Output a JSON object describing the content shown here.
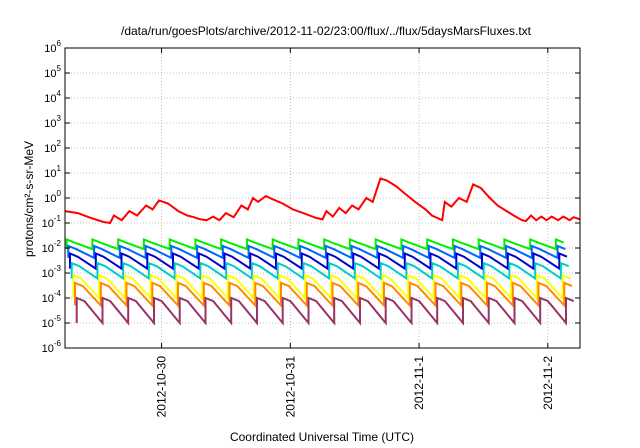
{
  "chart_data": {
    "type": "line",
    "title": "/data/run/goesPlots/archive/2012-11-02/23:00/flux/../flux/5daysMarsFluxes.txt",
    "xlabel": "Coordinated Universal Time (UTC)",
    "ylabel": "protons/cm²-s-sr-MeV",
    "yscale": "log",
    "ylim": [
      1e-06,
      1000000.0
    ],
    "xlim": [
      0,
      4.0
    ],
    "grid": true,
    "x_tick_labels": [
      {
        "x": 0.75,
        "label": "2012-10-30"
      },
      {
        "x": 1.75,
        "label": "2012-10-31"
      },
      {
        "x": 2.75,
        "label": "2012-11-1"
      },
      {
        "x": 3.75,
        "label": "2012-11-2"
      }
    ],
    "y_ticks": [
      {
        "base": "10",
        "exp": "-6",
        "v": -6
      },
      {
        "base": "10",
        "exp": "-5",
        "v": -5
      },
      {
        "base": "10",
        "exp": "-4",
        "v": -4
      },
      {
        "base": "10",
        "exp": "-3",
        "v": -3
      },
      {
        "base": "10",
        "exp": "-2",
        "v": -2
      },
      {
        "base": "10",
        "exp": "-1",
        "v": -1
      },
      {
        "base": "10",
        "exp": "0",
        "v": 0
      },
      {
        "base": "10",
        "exp": "1",
        "v": 1
      },
      {
        "base": "10",
        "exp": "2",
        "v": 2
      },
      {
        "base": "10",
        "exp": "3",
        "v": 3
      },
      {
        "base": "10",
        "exp": "4",
        "v": 4
      },
      {
        "base": "10",
        "exp": "5",
        "v": 5
      },
      {
        "base": "10",
        "exp": "6",
        "v": 6
      }
    ],
    "series": [
      {
        "color": "#ff0000",
        "points": [
          [
            0,
            0.3
          ],
          [
            0.1,
            0.25
          ],
          [
            0.2,
            0.16
          ],
          [
            0.3,
            0.11
          ],
          [
            0.35,
            0.1
          ],
          [
            0.38,
            0.2
          ],
          [
            0.44,
            0.13
          ],
          [
            0.5,
            0.3
          ],
          [
            0.56,
            0.2
          ],
          [
            0.63,
            0.5
          ],
          [
            0.68,
            0.35
          ],
          [
            0.73,
            0.8
          ],
          [
            0.8,
            0.6
          ],
          [
            0.88,
            0.3
          ],
          [
            0.95,
            0.2
          ],
          [
            1.0,
            0.17
          ],
          [
            1.05,
            0.14
          ],
          [
            1.1,
            0.13
          ],
          [
            1.15,
            0.18
          ],
          [
            1.2,
            0.13
          ],
          [
            1.25,
            0.25
          ],
          [
            1.31,
            0.17
          ],
          [
            1.37,
            0.5
          ],
          [
            1.42,
            0.35
          ],
          [
            1.46,
            1.0
          ],
          [
            1.5,
            0.7
          ],
          [
            1.56,
            1.2
          ],
          [
            1.61,
            0.9
          ],
          [
            1.69,
            0.6
          ],
          [
            1.77,
            0.35
          ],
          [
            1.85,
            0.25
          ],
          [
            1.9,
            0.2
          ],
          [
            1.95,
            0.16
          ],
          [
            2.0,
            0.14
          ],
          [
            2.03,
            0.3
          ],
          [
            2.08,
            0.18
          ],
          [
            2.13,
            0.4
          ],
          [
            2.18,
            0.25
          ],
          [
            2.23,
            0.5
          ],
          [
            2.28,
            0.35
          ],
          [
            2.34,
            1.0
          ],
          [
            2.39,
            0.7
          ],
          [
            2.45,
            6.0
          ],
          [
            2.5,
            5.0
          ],
          [
            2.57,
            3.0
          ],
          [
            2.64,
            1.5
          ],
          [
            2.72,
            0.7
          ],
          [
            2.8,
            0.35
          ],
          [
            2.85,
            0.2
          ],
          [
            2.89,
            0.16
          ],
          [
            2.93,
            0.13
          ],
          [
            2.95,
            0.7
          ],
          [
            3.0,
            0.45
          ],
          [
            3.06,
            1.0
          ],
          [
            3.12,
            0.7
          ],
          [
            3.17,
            3.5
          ],
          [
            3.23,
            2.5
          ],
          [
            3.3,
            1.0
          ],
          [
            3.36,
            0.5
          ],
          [
            3.43,
            0.3
          ],
          [
            3.5,
            0.18
          ],
          [
            3.55,
            0.13
          ],
          [
            3.58,
            0.12
          ],
          [
            3.62,
            0.2
          ],
          [
            3.66,
            0.13
          ],
          [
            3.7,
            0.18
          ],
          [
            3.74,
            0.13
          ],
          [
            3.78,
            0.18
          ],
          [
            3.83,
            0.13
          ],
          [
            3.87,
            0.18
          ],
          [
            3.92,
            0.13
          ],
          [
            3.95,
            0.17
          ],
          [
            4.0,
            0.14
          ]
        ]
      },
      {
        "color": "#00ee00",
        "base": 0.009,
        "peak": 0.022
      },
      {
        "color": "#0066ff",
        "base": 0.004,
        "peak": 0.012
      },
      {
        "color": "#0000cc",
        "base": 0.0015,
        "peak": 0.006
      },
      {
        "color": "#00cccc",
        "base": 0.0006,
        "peak": 0.0025
      },
      {
        "color": "#ffff00",
        "base": 0.0001,
        "peak": 0.0008
      },
      {
        "color": "#ff8800",
        "base": 5e-05,
        "peak": 0.0004
      },
      {
        "color": "#993366",
        "base": 1e-05,
        "peak": 0.0001
      }
    ]
  }
}
